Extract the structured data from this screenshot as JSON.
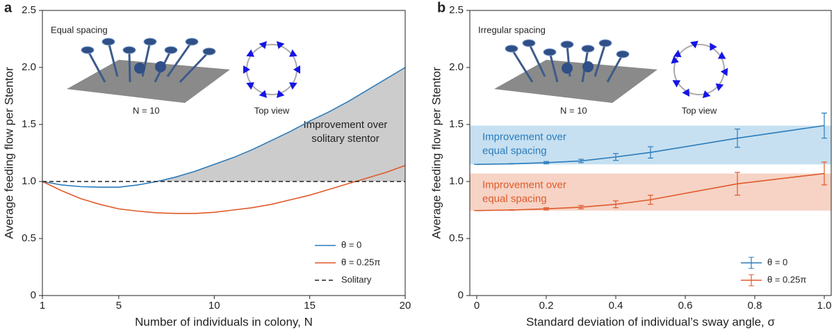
{
  "chart_data": [
    {
      "type": "line",
      "panel": "a",
      "x_label": "Number of individuals in colony, N",
      "y_label": "Average feeding flow per Stentor",
      "inset_title": "Equal spacing",
      "inset_caption": "N = 10",
      "inset_view": "Top view",
      "annotation": [
        "Improvement over",
        "solitary stentor"
      ],
      "shade_color": "#cccccc",
      "x": [
        1,
        2,
        3,
        4,
        5,
        6,
        7,
        8,
        9,
        10,
        11,
        12,
        13,
        14,
        15,
        16,
        17,
        18,
        19,
        20
      ],
      "series": [
        {
          "name": "θ = 0",
          "color": "#2b7bba",
          "linestyle": "solid",
          "values": [
            1.0,
            0.97,
            0.955,
            0.95,
            0.95,
            0.97,
            1.0,
            1.04,
            1.09,
            1.15,
            1.21,
            1.28,
            1.36,
            1.44,
            1.53,
            1.61,
            1.7,
            1.8,
            1.9,
            2.0
          ]
        },
        {
          "name": "θ = 0.25π",
          "color": "#e0592a",
          "linestyle": "solid",
          "values": [
            1.0,
            0.92,
            0.85,
            0.8,
            0.76,
            0.74,
            0.725,
            0.72,
            0.72,
            0.73,
            0.75,
            0.77,
            0.8,
            0.84,
            0.88,
            0.93,
            0.98,
            1.03,
            1.08,
            1.14
          ]
        },
        {
          "name": "Solitary",
          "color": "#222222",
          "linestyle": "dashed",
          "values": [
            1,
            1,
            1,
            1,
            1,
            1,
            1,
            1,
            1,
            1,
            1,
            1,
            1,
            1,
            1,
            1,
            1,
            1,
            1,
            1
          ]
        }
      ],
      "xlim": [
        1,
        20
      ],
      "xticks": [
        1,
        5,
        10,
        15,
        20
      ],
      "ylim": [
        0,
        2.5
      ],
      "yticks": [
        0,
        0.5,
        {
          "value": 1,
          "label": "1.0"
        },
        1.5,
        {
          "value": 2,
          "label": "2.0"
        },
        2.5
      ],
      "legend": "lower right"
    },
    {
      "type": "line",
      "panel": "b",
      "x_label": "Standard deviation of individual’s sway angle, σ",
      "y_label": "Average feeding flow per Stentor",
      "inset_title": "Irregular spacing",
      "inset_caption": "N = 10",
      "inset_view": "Top view",
      "bands": [
        {
          "range": [
            1.15,
            1.49
          ],
          "color": "#c6e0f1",
          "text_color": "#2b7bba",
          "text": [
            "Improvement over",
            "equal spacing"
          ]
        },
        {
          "range": [
            0.745,
            1.07
          ],
          "color": "#f6d3c5",
          "text_color": "#e0592a",
          "text": [
            "Improvement over",
            "equal spacing"
          ]
        }
      ],
      "x": [
        0,
        0.1,
        0.2,
        0.3,
        0.4,
        0.5,
        0.75,
        1.0
      ],
      "series": [
        {
          "name": "θ = 0",
          "color": "#2b7bba",
          "values": [
            1.15,
            1.155,
            1.165,
            1.18,
            1.215,
            1.255,
            1.38,
            1.49
          ],
          "errors": [
            0,
            0.002,
            0.01,
            0.015,
            0.03,
            0.05,
            0.08,
            0.11
          ]
        },
        {
          "name": "θ = 0.25π",
          "color": "#e0592a",
          "values": [
            0.745,
            0.75,
            0.76,
            0.775,
            0.8,
            0.84,
            0.98,
            1.07
          ],
          "errors": [
            0,
            0.002,
            0.01,
            0.015,
            0.03,
            0.04,
            0.1,
            0.1
          ]
        }
      ],
      "xlim": [
        -0.02,
        1.02
      ],
      "xticks": [
        0,
        0.2,
        0.4,
        0.6,
        0.8,
        {
          "value": 1,
          "label": "1.0"
        }
      ],
      "ylim": [
        0,
        2.5
      ],
      "yticks": [
        0,
        0.5,
        {
          "value": 1,
          "label": "1.0"
        },
        1.5,
        {
          "value": 2,
          "label": "2.0"
        },
        2.5
      ],
      "legend": "lower right"
    }
  ]
}
